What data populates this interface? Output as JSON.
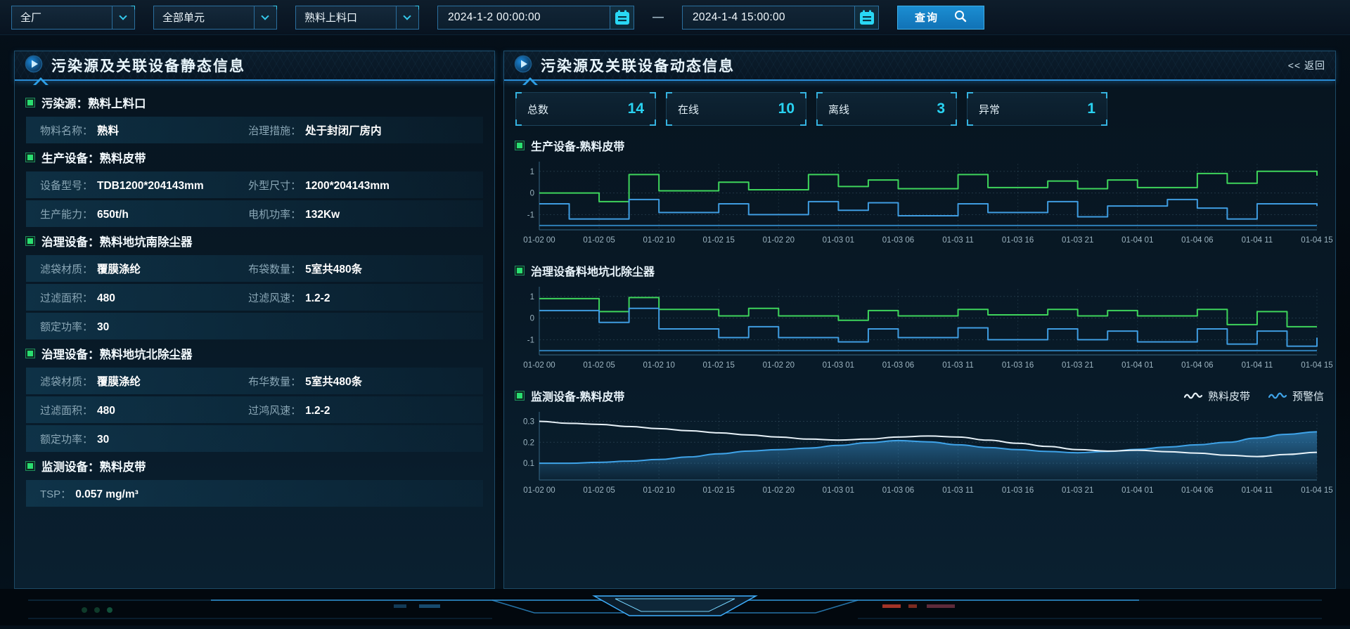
{
  "colors": {
    "accent_cyan": "#29d3f2",
    "accent_blue": "#2e8fd0",
    "green_series": "#3ed45b",
    "blue_series": "#3f9ce0",
    "white_series": "#e8f2f8",
    "stat_value": "#29d3f2",
    "bullet_green": "#2ade70"
  },
  "topbar": {
    "selects": [
      {
        "label": "全厂"
      },
      {
        "label": "全部单元"
      },
      {
        "label": "熟料上料口"
      }
    ],
    "date_from": "2024-1-2 00:00:00",
    "date_to": "2024-1-4 15:00:00",
    "range_separator": "—",
    "search_label": "查询"
  },
  "left_panel": {
    "title": "污染源及关联设备静态信息",
    "rows": [
      {
        "type": "section",
        "text": "污染源：熟料上料口"
      },
      {
        "type": "fields",
        "fields": [
          {
            "label": "物料名称：",
            "value": "熟料"
          },
          {
            "label": "治理措施：",
            "value": "处于封闭厂房内"
          }
        ]
      },
      {
        "type": "section",
        "text": "生产设备：熟料皮带"
      },
      {
        "type": "fields",
        "fields": [
          {
            "label": "设备型号：",
            "value": "TDB1200*204143mm"
          },
          {
            "label": "外型尺寸：",
            "value": "1200*204143mm"
          }
        ]
      },
      {
        "type": "fields",
        "fields": [
          {
            "label": "生产能力：",
            "value": "650t/h"
          },
          {
            "label": "电机功率：",
            "value": "132Kw"
          }
        ]
      },
      {
        "type": "section",
        "text": "治理设备：熟料地坑南除尘器"
      },
      {
        "type": "fields",
        "fields": [
          {
            "label": "滤袋材质：",
            "value": "覆膜涤纶"
          },
          {
            "label": "布袋数量：",
            "value": "5室共480条"
          }
        ]
      },
      {
        "type": "fields",
        "fields": [
          {
            "label": "过滤面积：",
            "value": "480"
          },
          {
            "label": "过滤风速：",
            "value": "1.2-2"
          }
        ]
      },
      {
        "type": "fields",
        "fields": [
          {
            "label": "额定功率：",
            "value": "30"
          }
        ]
      },
      {
        "type": "section",
        "text": "治理设备：熟料地坑北除尘器"
      },
      {
        "type": "fields",
        "fields": [
          {
            "label": "滤袋材质：",
            "value": "覆膜涤纶"
          },
          {
            "label": "布华数量：",
            "value": "5室共480条"
          }
        ]
      },
      {
        "type": "fields",
        "fields": [
          {
            "label": "过滤面积：",
            "value": "480"
          },
          {
            "label": "过鸿风速：",
            "value": "1.2-2"
          }
        ]
      },
      {
        "type": "fields",
        "fields": [
          {
            "label": "额定功率：",
            "value": "30"
          }
        ]
      },
      {
        "type": "section",
        "text": "监测设备：熟料皮带"
      },
      {
        "type": "fields",
        "fields": [
          {
            "label": "TSP：",
            "value": "0.057 mg/m³"
          }
        ]
      }
    ]
  },
  "right_panel": {
    "title": "污染源及关联设备动态信息",
    "back_label": "<< 返回",
    "stats": [
      {
        "label": "总数",
        "value": "14"
      },
      {
        "label": "在线",
        "value": "10"
      },
      {
        "label": "离线",
        "value": "3"
      },
      {
        "label": "异常",
        "value": "1"
      }
    ]
  },
  "chart_data": [
    {
      "type": "line",
      "title": "生产设备-熟料皮带",
      "grid": true,
      "legend_position": "none",
      "categories": [
        "01-02 00",
        "01-02 05",
        "01-02 10",
        "01-02 15",
        "01-02 20",
        "01-03 01",
        "01-03 06",
        "01-03 11",
        "01-03 16",
        "01-03 21",
        "01-04 01",
        "01-04 06",
        "01-04 11",
        "01-04 15"
      ],
      "ylim": [
        -1.7,
        1.35
      ],
      "yticks": [
        1,
        0,
        -1
      ],
      "series": [
        {
          "name": "green",
          "color": "#3ed45b",
          "step": true,
          "values": [
            0,
            0,
            -0.4,
            0.85,
            0.1,
            0.1,
            0.5,
            0.15,
            0.15,
            0.85,
            0.3,
            0.6,
            0.2,
            0.2,
            0.85,
            0.25,
            0.25,
            0.55,
            0.2,
            0.6,
            0.25,
            0.25,
            0.9,
            0.45,
            1.0,
            1.0,
            0.8
          ]
        },
        {
          "name": "blue",
          "color": "#3f9ce0",
          "step": true,
          "values": [
            -0.5,
            -1.2,
            -1.2,
            -0.3,
            -0.9,
            -0.9,
            -0.5,
            -1.0,
            -1.0,
            -0.4,
            -0.8,
            -0.45,
            -1.05,
            -1.05,
            -0.5,
            -0.9,
            -0.9,
            -0.4,
            -1.1,
            -0.6,
            -0.6,
            -0.3,
            -0.7,
            -1.2,
            -0.5,
            -0.5,
            -0.6
          ]
        },
        {
          "name": "baseline",
          "color": "#2e7fb8",
          "step": true,
          "values": [
            -1.5,
            -1.5
          ]
        }
      ]
    },
    {
      "type": "line",
      "title": "治理设备料地坑北除尘器",
      "grid": true,
      "legend_position": "none",
      "categories": [
        "01-02 00",
        "01-02 05",
        "01-02 10",
        "01-02 15",
        "01-02 20",
        "01-03 01",
        "01-03 06",
        "01-03 11",
        "01-03 16",
        "01-03 21",
        "01-04 01",
        "01-04 06",
        "01-04 11",
        "01-04 15"
      ],
      "ylim": [
        -1.7,
        1.35
      ],
      "yticks": [
        1,
        0,
        -1
      ],
      "series": [
        {
          "name": "green",
          "color": "#3ed45b",
          "step": true,
          "values": [
            0.9,
            0.9,
            0.3,
            0.95,
            0.4,
            0.4,
            0.1,
            0.45,
            0.1,
            0.1,
            -0.1,
            0.35,
            0.1,
            0.1,
            0.4,
            0.15,
            0.15,
            0.4,
            0.1,
            0.35,
            0.1,
            0.1,
            0.4,
            -0.3,
            0.3,
            -0.4,
            -0.4
          ]
        },
        {
          "name": "blue",
          "color": "#3f9ce0",
          "step": true,
          "values": [
            0.35,
            0.35,
            -0.2,
            0.45,
            -0.5,
            -0.5,
            -0.9,
            -0.4,
            -0.9,
            -0.9,
            -1.1,
            -0.5,
            -0.9,
            -0.9,
            -0.45,
            -1.0,
            -1.0,
            -0.5,
            -1.0,
            -0.6,
            -1.1,
            -1.1,
            -0.5,
            -1.2,
            -0.6,
            -1.3,
            -0.9
          ]
        },
        {
          "name": "baseline",
          "color": "#2e7fb8",
          "step": true,
          "values": [
            -1.5,
            -1.5
          ]
        }
      ]
    },
    {
      "type": "area",
      "title": "监测设备-熟料皮带",
      "grid": true,
      "legend_position": "top-right",
      "legend": [
        {
          "label": "熟料皮带",
          "color": "#e8f2f8"
        },
        {
          "label": "预警信",
          "color": "#3fa3e8"
        }
      ],
      "categories": [
        "01-02 00",
        "01-02 05",
        "01-02 10",
        "01-02 15",
        "01-02 20",
        "01-03 01",
        "01-03 06",
        "01-03 11",
        "01-03 16",
        "01-03 21",
        "01-04 01",
        "01-04 06",
        "01-04 11",
        "01-04 15"
      ],
      "ylim": [
        0.02,
        0.335
      ],
      "yticks": [
        0.3,
        0.2,
        0.1
      ],
      "series": [
        {
          "name": "预警信",
          "color": "#3fa3e8",
          "area": true,
          "values": [
            0.1,
            0.1,
            0.104,
            0.11,
            0.118,
            0.13,
            0.145,
            0.158,
            0.165,
            0.172,
            0.185,
            0.198,
            0.208,
            0.202,
            0.188,
            0.175,
            0.165,
            0.156,
            0.15,
            0.156,
            0.166,
            0.177,
            0.188,
            0.2,
            0.22,
            0.238,
            0.25
          ]
        },
        {
          "name": "熟料皮带",
          "color": "#e8f2f8",
          "values": [
            0.3,
            0.29,
            0.285,
            0.275,
            0.265,
            0.255,
            0.245,
            0.235,
            0.225,
            0.215,
            0.21,
            0.215,
            0.225,
            0.23,
            0.225,
            0.21,
            0.195,
            0.18,
            0.165,
            0.158,
            0.162,
            0.155,
            0.148,
            0.138,
            0.132,
            0.142,
            0.152
          ]
        }
      ]
    }
  ]
}
